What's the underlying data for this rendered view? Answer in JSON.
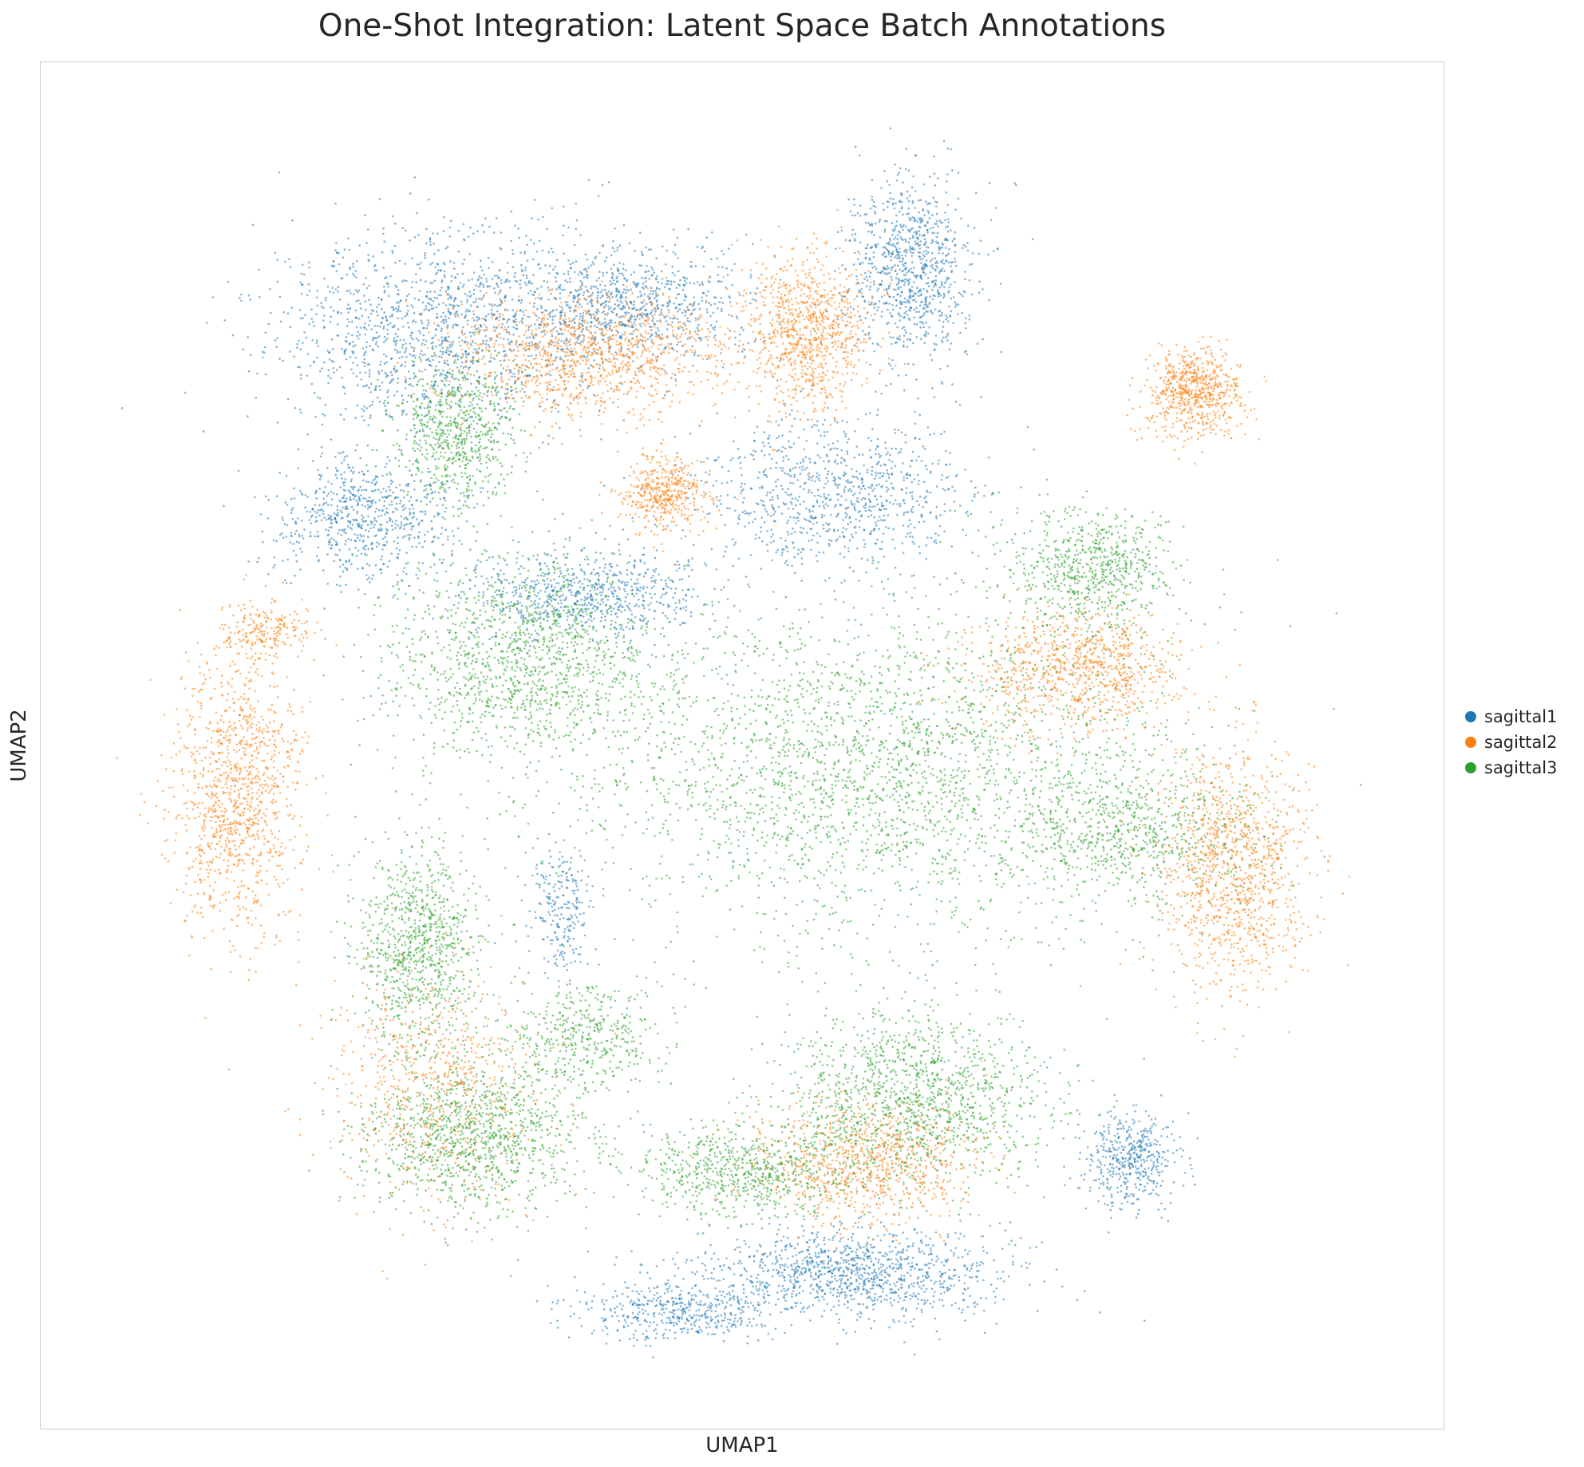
{
  "chart_data": {
    "type": "scatter",
    "title": "One-Shot Integration: Latent Space Batch Annotations",
    "xlabel": "UMAP1",
    "ylabel": "UMAP2",
    "grid": false,
    "ticks": false,
    "legend_position": "right-center",
    "series": [
      {
        "name": "sagittal1",
        "color": "#1f77b4",
        "regions": [
          {
            "x": 26,
            "y": 83,
            "spread_x": 10,
            "spread_y": 7,
            "weight": 6
          },
          {
            "x": 41,
            "y": 85,
            "spread_x": 8,
            "spread_y": 4,
            "weight": 4
          },
          {
            "x": 63,
            "y": 88,
            "spread_x": 4,
            "spread_y": 6,
            "weight": 4
          },
          {
            "x": 21,
            "y": 68,
            "spread_x": 6,
            "spread_y": 4,
            "weight": 3
          },
          {
            "x": 38,
            "y": 62,
            "spread_x": 8,
            "spread_y": 3,
            "weight": 3
          },
          {
            "x": 57,
            "y": 70,
            "spread_x": 9,
            "spread_y": 5,
            "weight": 4
          },
          {
            "x": 58,
            "y": 8,
            "spread_x": 10,
            "spread_y": 3,
            "weight": 5
          },
          {
            "x": 45,
            "y": 5,
            "spread_x": 6,
            "spread_y": 2,
            "weight": 2
          },
          {
            "x": 80,
            "y": 17,
            "spread_x": 3,
            "spread_y": 3,
            "weight": 2
          },
          {
            "x": 36,
            "y": 37,
            "spread_x": 2,
            "spread_y": 4,
            "weight": 1
          }
        ]
      },
      {
        "name": "sagittal2",
        "color": "#ff7f0e",
        "regions": [
          {
            "x": 38,
            "y": 81,
            "spread_x": 9,
            "spread_y": 4,
            "weight": 5
          },
          {
            "x": 55,
            "y": 83,
            "spread_x": 4,
            "spread_y": 5,
            "weight": 4
          },
          {
            "x": 85,
            "y": 78,
            "spread_x": 3,
            "spread_y": 3,
            "weight": 3
          },
          {
            "x": 44,
            "y": 70,
            "spread_x": 3,
            "spread_y": 2.5,
            "weight": 2
          },
          {
            "x": 11,
            "y": 46,
            "spread_x": 4,
            "spread_y": 9,
            "weight": 5
          },
          {
            "x": 88,
            "y": 40,
            "spread_x": 5,
            "spread_y": 8,
            "weight": 5
          },
          {
            "x": 76,
            "y": 56,
            "spread_x": 7,
            "spread_y": 4,
            "weight": 4
          },
          {
            "x": 60,
            "y": 17,
            "spread_x": 7,
            "spread_y": 4,
            "weight": 4
          },
          {
            "x": 26,
            "y": 23,
            "spread_x": 7,
            "spread_y": 8,
            "weight": 3
          },
          {
            "x": 13,
            "y": 59,
            "spread_x": 3,
            "spread_y": 2,
            "weight": 1
          }
        ]
      },
      {
        "name": "sagittal3",
        "color": "#2ca02c",
        "regions": [
          {
            "x": 60,
            "y": 48,
            "spread_x": 19,
            "spread_y": 11,
            "weight": 12
          },
          {
            "x": 33,
            "y": 57,
            "spread_x": 9,
            "spread_y": 7,
            "weight": 6
          },
          {
            "x": 28,
            "y": 75,
            "spread_x": 4,
            "spread_y": 5,
            "weight": 3
          },
          {
            "x": 77,
            "y": 64,
            "spread_x": 5,
            "spread_y": 4,
            "weight": 3
          },
          {
            "x": 29,
            "y": 19,
            "spread_x": 7,
            "spread_y": 5,
            "weight": 5
          },
          {
            "x": 25,
            "y": 34,
            "spread_x": 4,
            "spread_y": 7,
            "weight": 4
          },
          {
            "x": 63,
            "y": 22,
            "spread_x": 9,
            "spread_y": 6,
            "weight": 6
          },
          {
            "x": 50,
            "y": 16,
            "spread_x": 7,
            "spread_y": 3,
            "weight": 3
          },
          {
            "x": 38,
            "y": 27,
            "spread_x": 5,
            "spread_y": 4,
            "weight": 2
          },
          {
            "x": 80,
            "y": 43,
            "spread_x": 8,
            "spread_y": 5,
            "weight": 3
          }
        ]
      }
    ]
  }
}
